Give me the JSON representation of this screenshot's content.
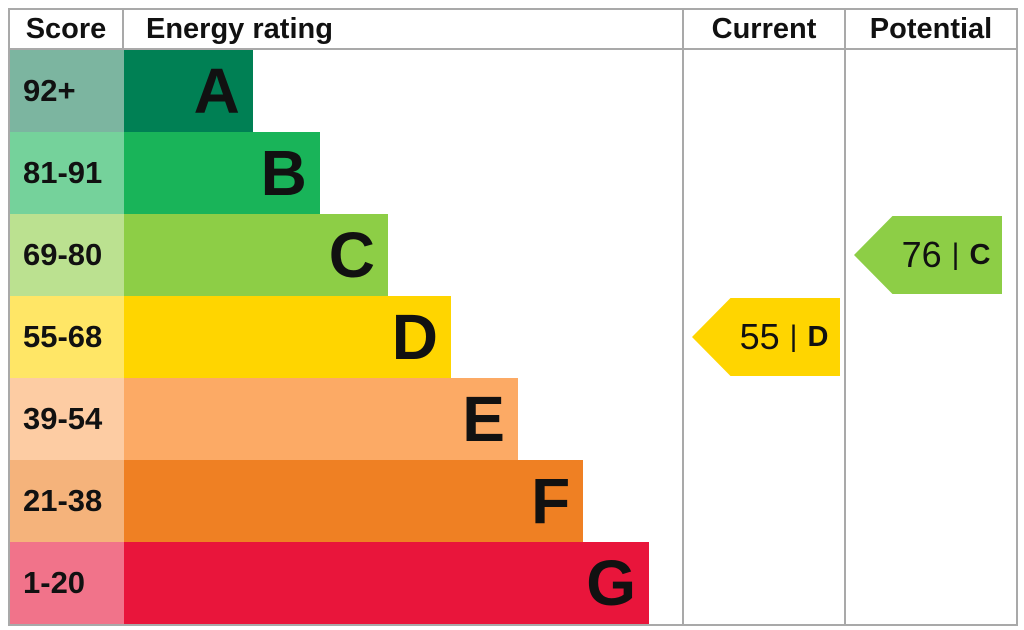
{
  "header": {
    "score": "Score",
    "energy_rating": "Energy rating",
    "current": "Current",
    "potential": "Potential"
  },
  "chart_data": {
    "type": "bar",
    "description": "EPC energy efficiency rating chart, bands A-G with stepped bar lengths",
    "columns": [
      "Score",
      "Energy rating",
      "Current",
      "Potential"
    ],
    "bands": [
      {
        "letter": "A",
        "score_range": "92+",
        "color": "#008054",
        "score_cell_color": "#7cb5a0",
        "bar_width_pct": 23.1
      },
      {
        "letter": "B",
        "score_range": "81-91",
        "color": "#19b459",
        "score_cell_color": "#75d29b",
        "bar_width_pct": 35.1
      },
      {
        "letter": "C",
        "score_range": "69-80",
        "color": "#8dce46",
        "score_cell_color": "#bbe190",
        "bar_width_pct": 47.3
      },
      {
        "letter": "D",
        "score_range": "55-68",
        "color": "#ffd500",
        "score_cell_color": "#ffe666",
        "bar_width_pct": 58.6
      },
      {
        "letter": "E",
        "score_range": "39-54",
        "color": "#fcaa65",
        "score_cell_color": "#fdcca3",
        "bar_width_pct": 70.6
      },
      {
        "letter": "F",
        "score_range": "21-38",
        "color": "#ef8023",
        "score_cell_color": "#f5b37b",
        "bar_width_pct": 82.3
      },
      {
        "letter": "G",
        "score_range": "1-20",
        "color": "#e9153b",
        "score_cell_color": "#f1738a",
        "bar_width_pct": 94.1
      }
    ],
    "current": {
      "value": "55",
      "separator": "|",
      "rating": "D",
      "band_index": 3,
      "color": "#ffd500"
    },
    "potential": {
      "value": "76",
      "separator": "|",
      "rating": "C",
      "band_index": 2,
      "color": "#8dce46"
    }
  }
}
